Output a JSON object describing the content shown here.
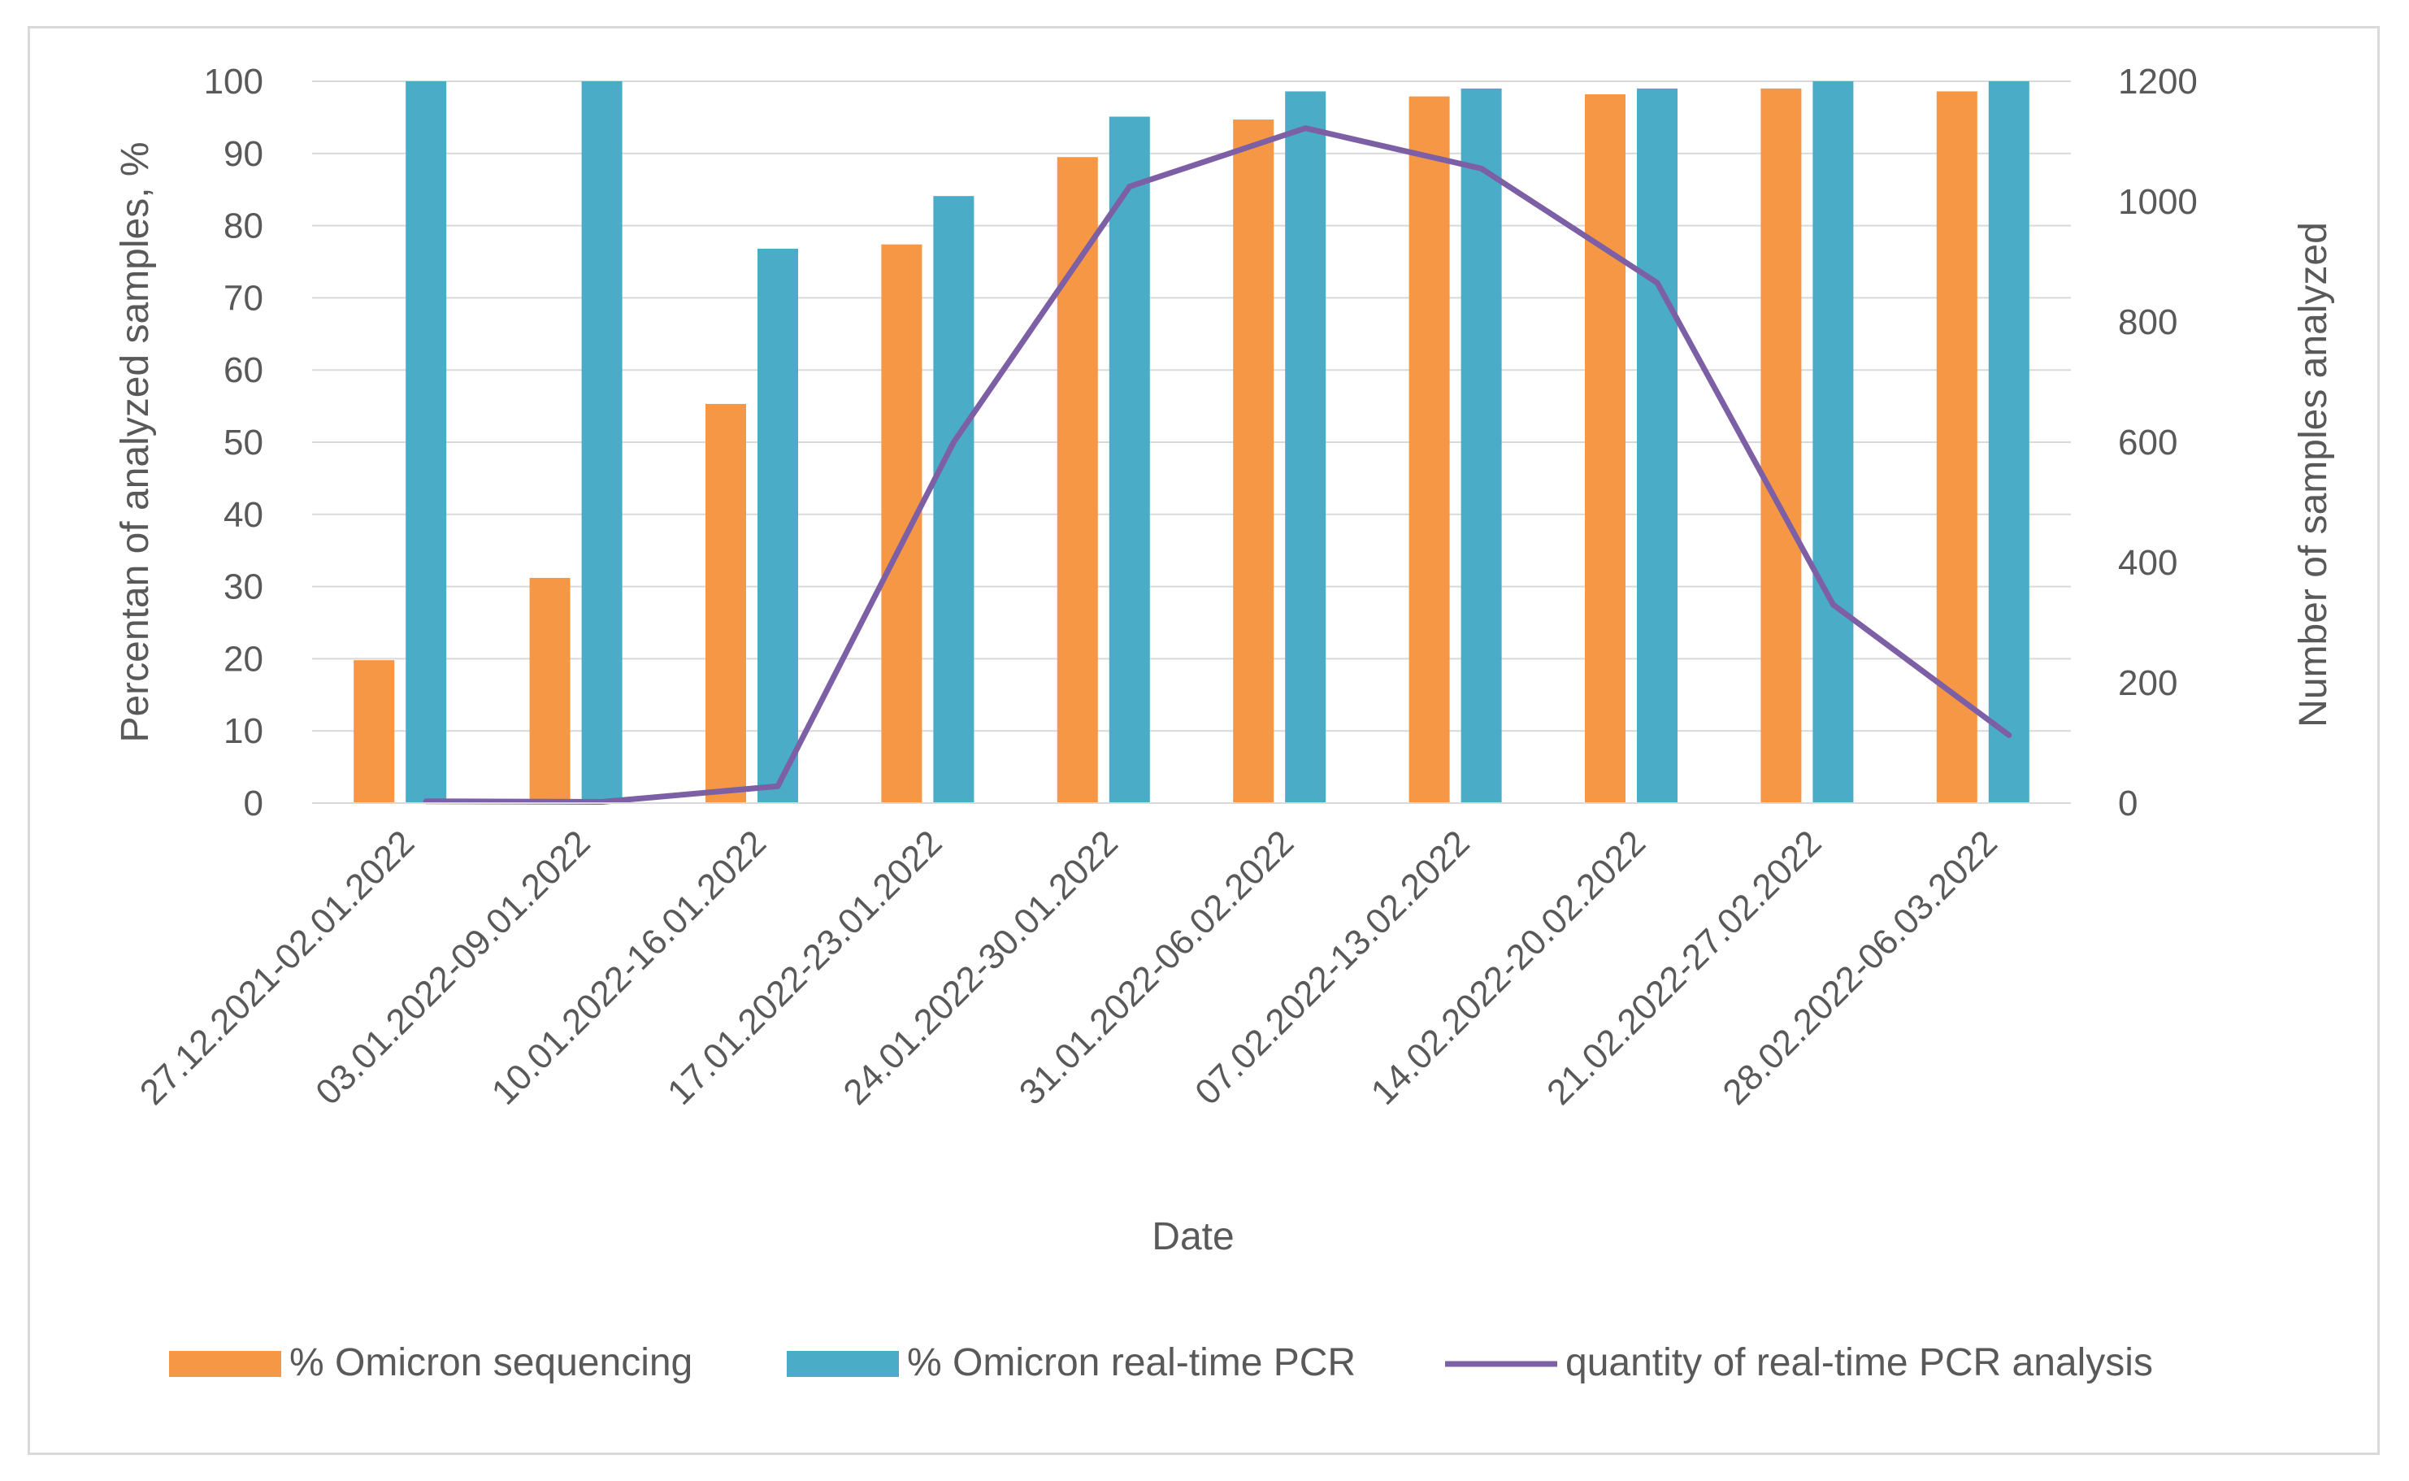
{
  "chart_data": {
    "type": "bar",
    "title": "",
    "xlabel": "Date",
    "ylabel": "Percentan of analyzed samples, %",
    "y2label": "Number of samples analyzed",
    "ylim": [
      0,
      100
    ],
    "y2lim": [
      0,
      1200
    ],
    "yticks": [
      "0",
      "10",
      "20",
      "30",
      "40",
      "50",
      "60",
      "70",
      "80",
      "90",
      "100"
    ],
    "y2ticks": [
      "0",
      "200",
      "400",
      "600",
      "800",
      "1000",
      "1200"
    ],
    "grid": true,
    "legend_position": "bottom",
    "categories": [
      "27.12.2021-02.01.2022",
      "03.01.2022-09.01.2022",
      "10.01.2022-16.01.2022",
      "17.01.2022-23.01.2022",
      "24.01.2022-30.01.2022",
      "31.01.2022-06.02.2022",
      "07.02.2022-13.02.2022",
      "14.02.2022-20.02.2022",
      "21.02.2022-27.02.2022",
      "28.02.2022-06.03.2022"
    ],
    "series": [
      {
        "name": "% Omicron sequencing",
        "type": "bar",
        "axis": "left",
        "color": "#f59744",
        "values": [
          19.8,
          31.2,
          55.3,
          77.4,
          89.5,
          94.7,
          97.9,
          98.2,
          99.0,
          98.6
        ]
      },
      {
        "name": "% Omicron real-time PCR",
        "type": "bar",
        "axis": "left",
        "color": "#4aacc6",
        "values": [
          100,
          100,
          76.8,
          84.1,
          95.1,
          98.6,
          99.0,
          99.0,
          100,
          100
        ]
      },
      {
        "name": "quantity of real-time PCR analysis",
        "type": "line",
        "axis": "right",
        "color": "#7d5fa6",
        "values": [
          3,
          2,
          28,
          600,
          1025,
          1122,
          1055,
          865,
          330,
          113
        ]
      }
    ]
  }
}
